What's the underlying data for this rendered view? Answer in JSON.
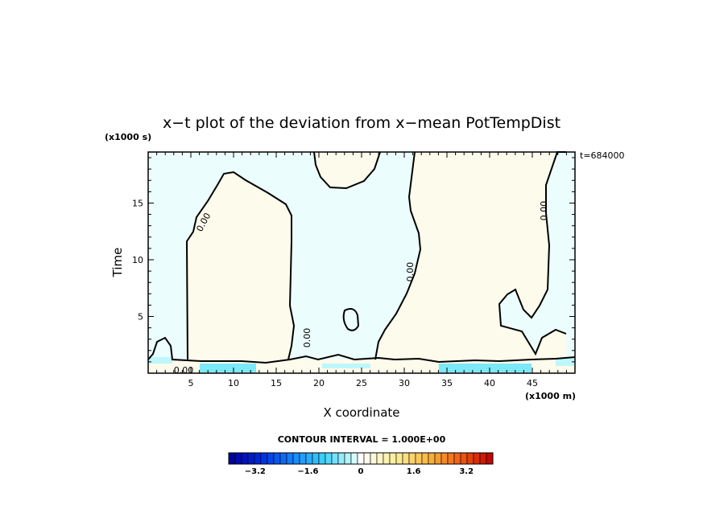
{
  "chart_data": {
    "type": "heatmap",
    "title": "x−t plot of the deviation from x−mean PotTempDist",
    "ylabel": "Time",
    "xlabel": "X coordinate",
    "y_unit": "(x1000 s)",
    "x_unit": "(x1000 m)",
    "time_stamp": "t=684000",
    "xlim": [
      0,
      50
    ],
    "ylim": [
      0,
      19.5
    ],
    "x_ticks": [
      5,
      10,
      15,
      20,
      25,
      30,
      35,
      40,
      45
    ],
    "x_tick_labels": [
      "5",
      "10",
      "15",
      "20",
      "25",
      "30",
      "35",
      "40",
      "45"
    ],
    "y_ticks": [
      5,
      10,
      15
    ],
    "y_tick_labels": [
      "5",
      "10",
      "15"
    ],
    "contour_label": "0.00",
    "contour_interval": "CONTOUR INTERVAL = 1.000E+00",
    "colorbar": {
      "min": -4.0,
      "max": 4.0,
      "tick_values": [
        -3.2,
        -1.6,
        0,
        1.6,
        3.2
      ],
      "tick_labels": [
        "−3.2",
        "−1.6",
        "0",
        "1.6",
        "3.2"
      ]
    },
    "regions": [
      {
        "sign": "positive",
        "x": [
          4.5,
          17.2
        ],
        "y": [
          1.2,
          18.2
        ]
      },
      {
        "sign": "positive",
        "x": [
          19.5,
          24.5
        ],
        "y": [
          16.0,
          19.5
        ]
      },
      {
        "sign": "positive",
        "x": [
          28.5,
          48.0
        ],
        "y": [
          1.2,
          19.5
        ]
      },
      {
        "sign": "negative",
        "x": [
          0,
          4.5
        ],
        "y": [
          0,
          19.5
        ]
      },
      {
        "sign": "negative",
        "x": [
          17.2,
          28.5
        ],
        "y": [
          1.2,
          16.0
        ]
      },
      {
        "sign": "negative",
        "x": [
          48.0,
          50
        ],
        "y": [
          0,
          19.5
        ]
      }
    ]
  }
}
